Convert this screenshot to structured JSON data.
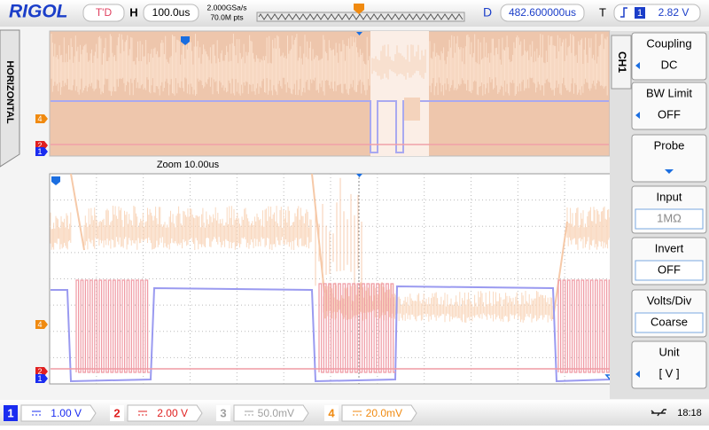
{
  "top_bar": {
    "logo": "RIGOL",
    "status": "T'D",
    "h_label": "H",
    "timebase": "100.0us",
    "sample_rate": "2.000GSa/s",
    "memory_depth": "70.0M pts",
    "d_label": "D",
    "delay": "482.600000us",
    "t_label": "T",
    "trigger_source": "1",
    "trigger_level": "2.82 V"
  },
  "side_tab": "HORIZONTAL",
  "zoom_label": "Zoom 10.00us",
  "upper_markers": [
    "4",
    "2",
    "1"
  ],
  "lower_markers": [
    "4",
    "2",
    "1"
  ],
  "menu": {
    "channel": "CH1",
    "items": [
      {
        "title": "Coupling",
        "value": "DC"
      },
      {
        "title": "BW Limit",
        "value": "OFF"
      },
      {
        "title": "Probe"
      },
      {
        "title": "Input",
        "value": "1MΩ"
      },
      {
        "title": "Invert",
        "value": "OFF"
      },
      {
        "title": "Volts/Div",
        "value": "Coarse"
      },
      {
        "title": "Unit",
        "value": "[ V ]"
      }
    ]
  },
  "channels": [
    {
      "number": "1",
      "scale": "1.00 V",
      "color": "#1a2cf0"
    },
    {
      "number": "2",
      "scale": "2.00 V",
      "color": "#e02020"
    },
    {
      "number": "3",
      "scale": "50.0mV",
      "color": "#a0a0a0"
    },
    {
      "number": "4",
      "scale": "20.0mV",
      "color": "#f08a10"
    }
  ],
  "clock": "18:18"
}
